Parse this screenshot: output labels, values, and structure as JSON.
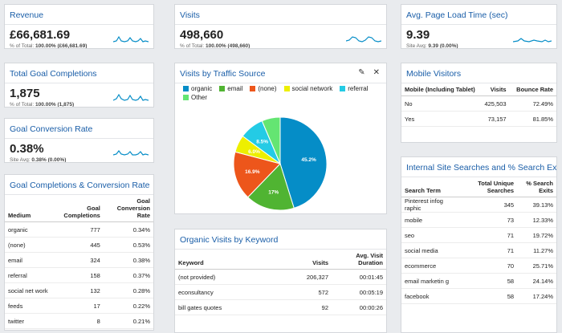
{
  "revenue": {
    "title": "Revenue",
    "value": "£66,681.69",
    "sub_label": "% of Total:",
    "sub_value": "100.00% (£66,681.69)"
  },
  "visits": {
    "title": "Visits",
    "value": "498,660",
    "sub_label": "% of Total:",
    "sub_value": "100.00% (498,660)"
  },
  "page_load": {
    "title": "Avg. Page Load Time (sec)",
    "value": "9.39",
    "sub_label": "Site Avg:",
    "sub_value": "9.39 (0.00%)"
  },
  "goal_completions": {
    "title": "Total Goal Completions",
    "value": "1,875",
    "sub_label": "% of Total:",
    "sub_value": "100.00% (1,875)"
  },
  "goal_conversion": {
    "title": "Goal Conversion Rate",
    "value": "0.38%",
    "sub_label": "Site Avg:",
    "sub_value": "0.38% (0.00%)"
  },
  "traffic_source": {
    "title": "Visits by Traffic Source",
    "edit_icon": "pencil-icon",
    "close_icon": "close-icon",
    "chart_data": {
      "type": "pie",
      "legend_placement": "top",
      "categories": [
        "organic",
        "email",
        "(none)",
        "social network",
        "referral",
        "Other"
      ],
      "values": [
        45.2,
        17.0,
        16.9,
        6.0,
        8.5,
        6.4
      ],
      "labels": [
        "45.2%",
        "17%",
        "16.9%",
        "6.0%",
        "8.5%",
        ""
      ],
      "colors": [
        "#058dc7",
        "#50b432",
        "#ed561b",
        "#edef00",
        "#24cbe5",
        "#64e572"
      ]
    }
  },
  "mobile": {
    "title": "Mobile Visitors",
    "headers": [
      "Mobile (Including Tablet)",
      "Visits",
      "Bounce Rate"
    ],
    "rows": [
      [
        "No",
        "425,503",
        "72.49%"
      ],
      [
        "Yes",
        "73,157",
        "81.85%"
      ]
    ]
  },
  "conv_table": {
    "title": "Goal Completions & Conversion Rate",
    "headers": [
      "Medium",
      "Goal Completions",
      "Goal Conversion Rate"
    ],
    "rows": [
      [
        "organic",
        "777",
        "0.34%"
      ],
      [
        "(none)",
        "445",
        "0.53%"
      ],
      [
        "email",
        "324",
        "0.38%"
      ],
      [
        "referral",
        "158",
        "0.37%"
      ],
      [
        "social net work",
        "132",
        "0.28%"
      ],
      [
        "feeds",
        "17",
        "0.22%"
      ],
      [
        "twitter",
        "8",
        "0.21%"
      ]
    ]
  },
  "keywords": {
    "title": "Organic Visits by Keyword",
    "headers": [
      "Keyword",
      "Visits",
      "Avg. Visit Duration"
    ],
    "rows": [
      [
        "(not provided)",
        "206,327",
        "00:01:45"
      ],
      [
        "econsultancy",
        "572",
        "00:05:19"
      ],
      [
        "bill gates quotes",
        "92",
        "00:00:26"
      ]
    ]
  },
  "search": {
    "title": "Internal Site Searches and % Search Exits...",
    "headers": [
      "Search Term",
      "Total Unique Searches",
      "% Search Exits"
    ],
    "rows": [
      [
        "Pinterest infog raphic",
        "345",
        "39.13%"
      ],
      [
        "mobile",
        "73",
        "12.33%"
      ],
      [
        "seo",
        "71",
        "19.72%"
      ],
      [
        "social media",
        "71",
        "11.27%"
      ],
      [
        "ecommerce",
        "70",
        "25.71%"
      ],
      [
        "email marketin g",
        "58",
        "24.14%"
      ],
      [
        "facebook",
        "58",
        "17.24%"
      ]
    ]
  }
}
